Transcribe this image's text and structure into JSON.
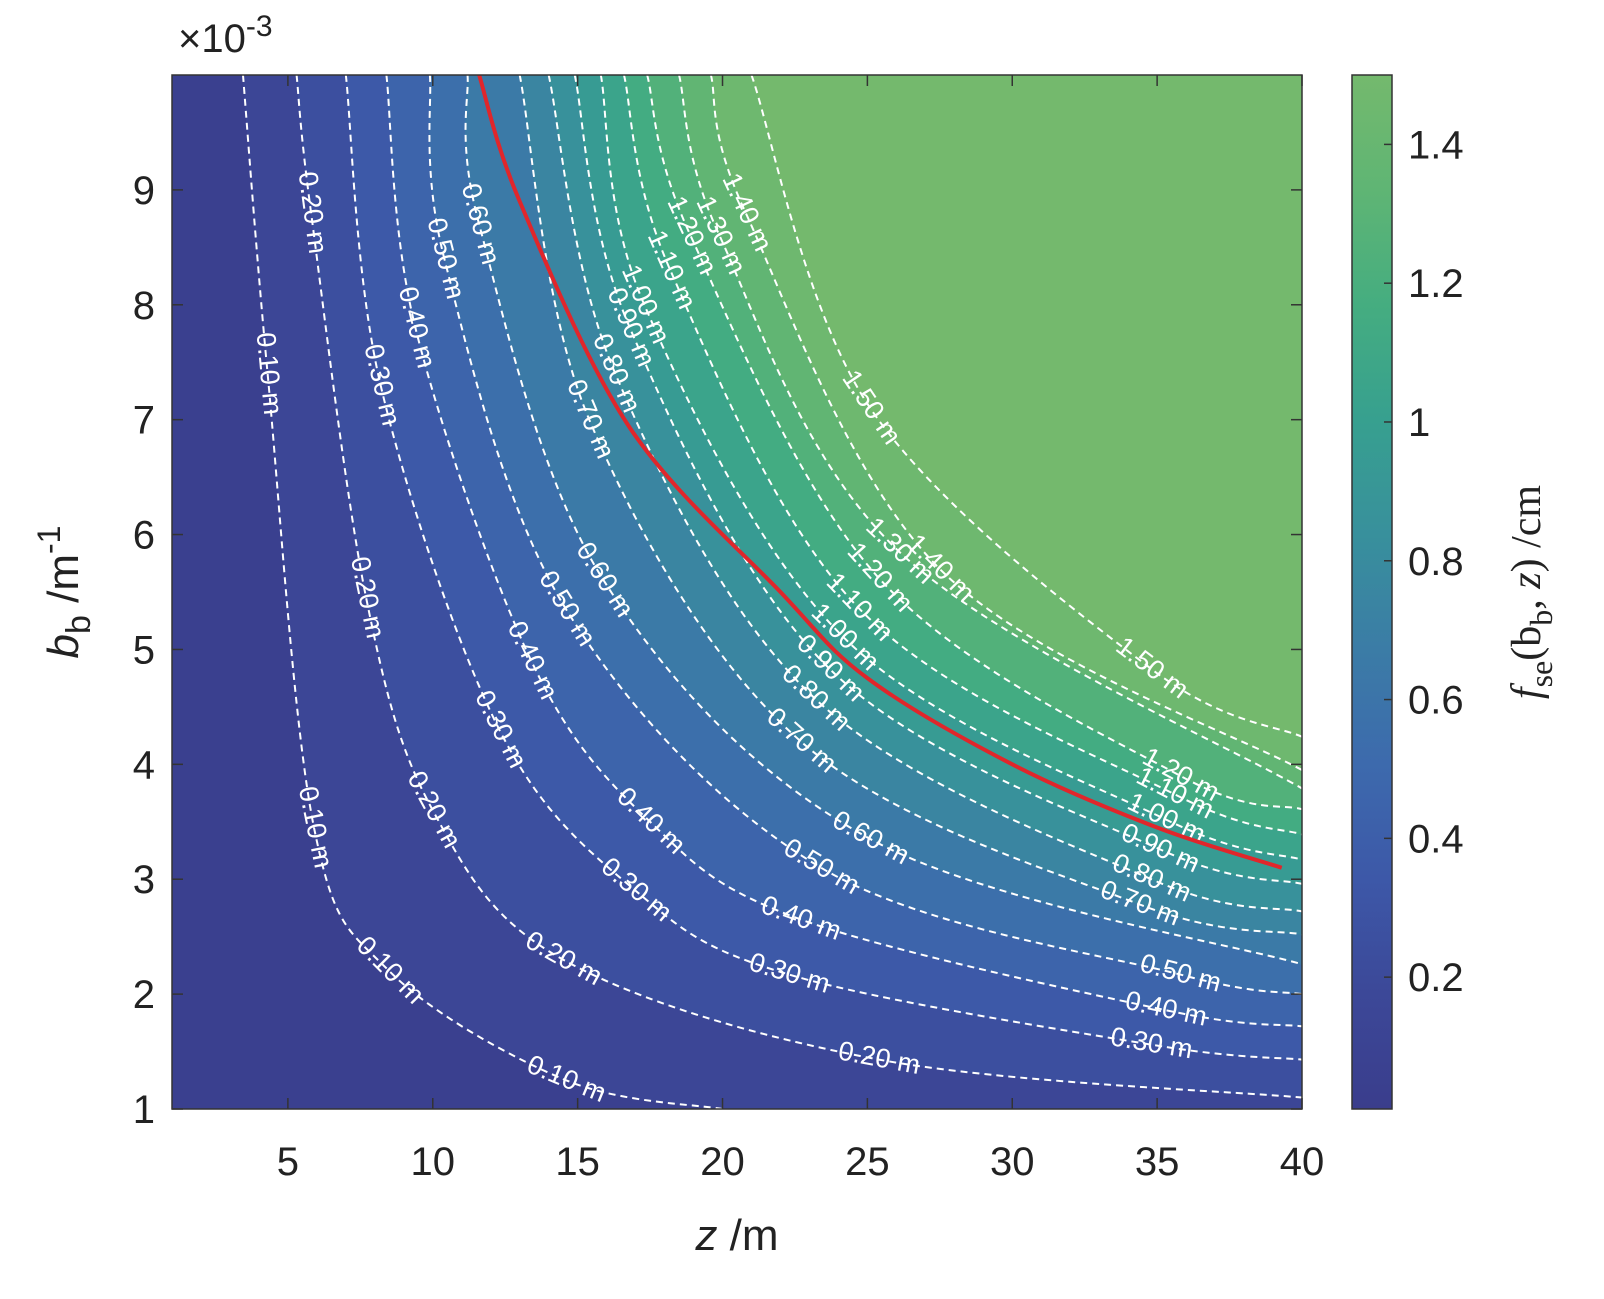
{
  "chart_data": {
    "type": "contour",
    "xlabel": [
      "z",
      " /m"
    ],
    "ylabel": [
      "b",
      "b",
      " /m",
      "-1"
    ],
    "y_multiplier": [
      "×10",
      "-3"
    ],
    "colorbar_label": [
      "f",
      "se",
      "(b",
      "b",
      ", ",
      "z",
      ") /cm"
    ],
    "xlim": [
      1,
      40
    ],
    "ylim": [
      1,
      10
    ],
    "xticks": [
      5,
      10,
      15,
      20,
      25,
      30,
      35,
      40
    ],
    "yticks": [
      1,
      2,
      3,
      4,
      5,
      6,
      7,
      8,
      9
    ],
    "clim": [
      0.01,
      1.5
    ],
    "cticks": [
      0.2,
      0.4,
      0.6,
      0.8,
      1,
      1.2,
      1.4
    ],
    "colormap": [
      "#3a3d8c",
      "#3c4898",
      "#3d58a8",
      "#3d6aad",
      "#3b7ca6",
      "#38909c",
      "#37a08f",
      "#45ad80",
      "#5fb574",
      "#74b96d"
    ],
    "contour_color": "#ffffff",
    "contours": [
      {
        "level": 0.1,
        "label": "0.10 m",
        "x": [
          3.45,
          4.3,
          5.9,
          8.5,
          14.6,
          20
        ],
        "y": [
          10,
          7.4,
          3.45,
          2.2,
          1.25,
          1
        ]
      },
      {
        "level": 0.2,
        "label": "0.20 m",
        "x": [
          5.3,
          5.8,
          7.7,
          10,
          14.5,
          25.4,
          40
        ],
        "y": [
          10,
          8.8,
          5.45,
          3.6,
          2.3,
          1.43,
          1.1
        ]
      },
      {
        "level": 0.3,
        "label": "0.30 m",
        "x": [
          7,
          8.2,
          12.3,
          17,
          22.3,
          34.8,
          40
        ],
        "y": [
          10,
          7.3,
          4.3,
          2.9,
          2.17,
          1.56,
          1.43
        ]
      },
      {
        "level": 0.4,
        "label": "0.40 m",
        "x": [
          8.4,
          9.4,
          13.4,
          17.5,
          22.7,
          35.3,
          40
        ],
        "y": [
          10,
          7.8,
          4.9,
          3.5,
          2.65,
          1.86,
          1.72
        ]
      },
      {
        "level": 0.5,
        "label": "0.50 m",
        "x": [
          9.9,
          10.4,
          14.6,
          23.4,
          35.8,
          40
        ],
        "y": [
          10,
          8.4,
          5.35,
          3.1,
          2.17,
          2.0
        ]
      },
      {
        "level": 0.6,
        "label": "0.60 m",
        "x": [
          11.2,
          11.6,
          15.9,
          25.1,
          40
        ],
        "y": [
          10,
          8.7,
          5.6,
          3.35,
          2.26
        ]
      },
      {
        "level": 0.7,
        "label": "0.70 m",
        "x": [
          13,
          15.4,
          22.7,
          34.4,
          40
        ],
        "y": [
          10,
          7.0,
          4.2,
          2.78,
          2.52
        ]
      },
      {
        "level": 0.8,
        "label": "0.80 m",
        "x": [
          14,
          16.3,
          23.2,
          34.8,
          40
        ],
        "y": [
          10,
          7.4,
          4.57,
          3.0,
          2.72
        ]
      },
      {
        "level": 0.9,
        "label": "0.90 m",
        "x": [
          14.9,
          16.8,
          23.7,
          35.1,
          40
        ],
        "y": [
          10,
          7.8,
          4.83,
          3.26,
          2.96
        ]
      },
      {
        "level": 1.0,
        "label": "1.00 m",
        "x": [
          15.8,
          17.3,
          24.2,
          35.3,
          40
        ],
        "y": [
          10,
          8.0,
          5.1,
          3.52,
          3.17
        ]
      },
      {
        "level": 1.1,
        "label": "1.10 m",
        "x": [
          16.6,
          18.2,
          24.7,
          35.6,
          40
        ],
        "y": [
          10,
          8.3,
          5.36,
          3.74,
          3.39
        ]
      },
      {
        "level": 1.2,
        "label": "1.20 m",
        "x": [
          17.4,
          18.9,
          25.4,
          35.8,
          40
        ],
        "y": [
          10,
          8.6,
          5.62,
          3.9,
          3.61
        ]
      },
      {
        "level": 1.3,
        "label": "1.30 m",
        "x": [
          18.5,
          19.9,
          26.1,
          40
        ],
        "y": [
          10,
          8.6,
          5.85,
          3.79
        ]
      },
      {
        "level": 1.4,
        "label": "1.40 m",
        "x": [
          19.6,
          20.8,
          27.5,
          40
        ],
        "y": [
          10,
          8.8,
          5.7,
          3.95
        ]
      },
      {
        "level": 1.5,
        "label": "1.50 m",
        "x": [
          21,
          25.1,
          34.8,
          40
        ],
        "y": [
          10,
          7.1,
          4.83,
          4.24
        ]
      }
    ],
    "red_curve": {
      "color": "#e0262b",
      "x": [
        11.6,
        13,
        16.8,
        22,
        25,
        30,
        35,
        39.3
      ],
      "y": [
        10,
        8.9,
        6.93,
        5.5,
        4.75,
        4.0,
        3.45,
        3.1
      ]
    }
  }
}
